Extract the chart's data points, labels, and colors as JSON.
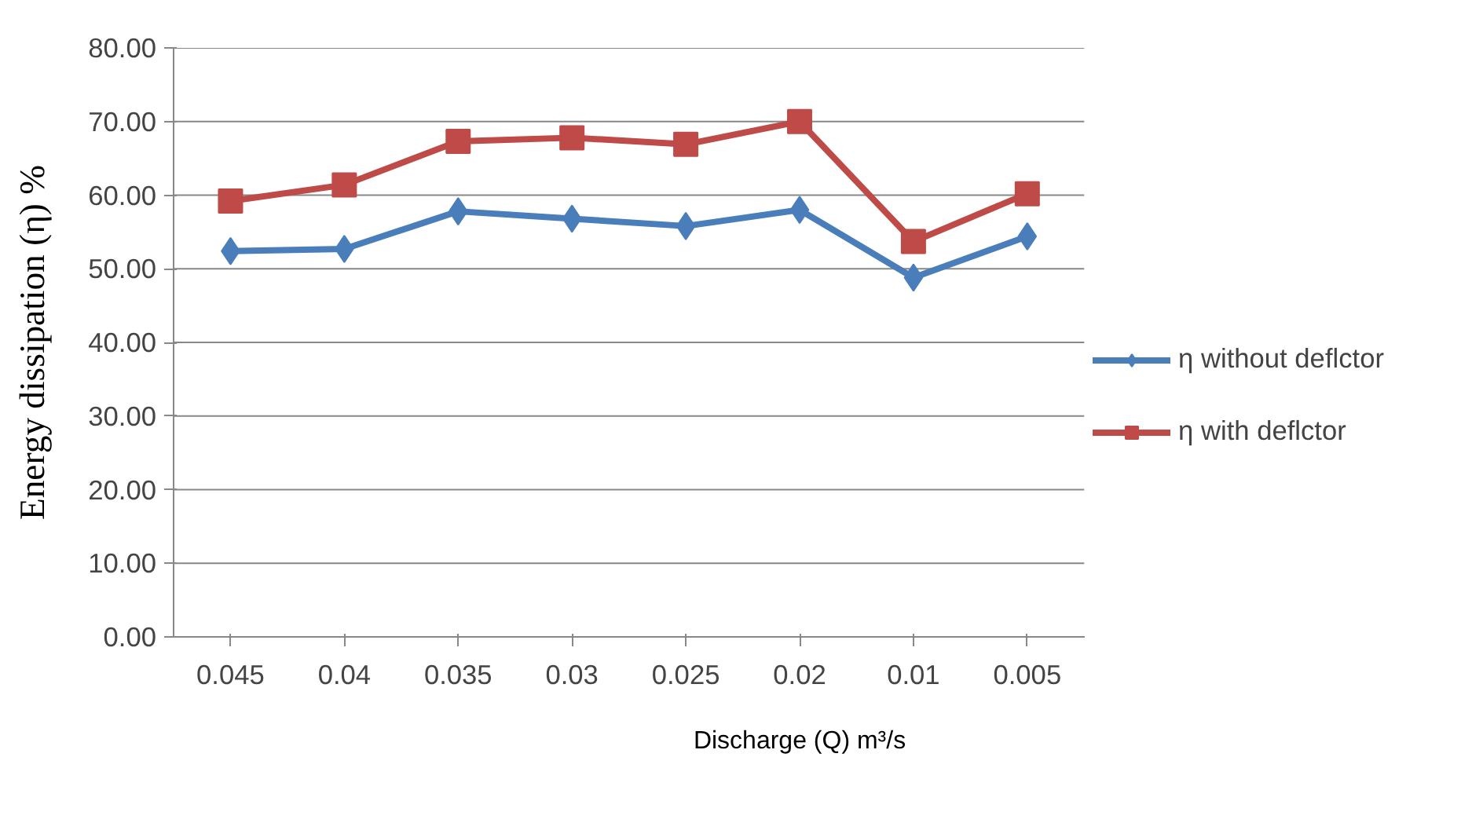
{
  "chart_data": {
    "type": "line",
    "xlabel": "Discharge (Q) m³/s",
    "ylabel": "Energy dissipation (η) %",
    "categories": [
      "0.045",
      "0.04",
      "0.035",
      "0.03",
      "0.025",
      "0.02",
      "0.01",
      "0.005"
    ],
    "series": [
      {
        "name": "η without deflctor",
        "color": "#4a7ebb",
        "marker": "diamond",
        "values": [
          52.4,
          52.7,
          57.8,
          56.8,
          55.8,
          58.0,
          48.8,
          54.4
        ]
      },
      {
        "name": "η with deflctor",
        "color": "#be4b48",
        "marker": "square",
        "values": [
          59.2,
          61.4,
          67.3,
          67.8,
          66.9,
          70.0,
          53.7,
          60.2
        ]
      }
    ],
    "ylim": [
      0,
      80
    ],
    "yticks": [
      {
        "value": 0,
        "label": "0.00"
      },
      {
        "value": 10,
        "label": "10.00"
      },
      {
        "value": 20,
        "label": "20.00"
      },
      {
        "value": 30,
        "label": "30.00"
      },
      {
        "value": 40,
        "label": "40.00"
      },
      {
        "value": 50,
        "label": "50.00"
      },
      {
        "value": 60,
        "label": "60.00"
      },
      {
        "value": 70,
        "label": "70.00"
      },
      {
        "value": 80,
        "label": "80.00"
      }
    ],
    "grid": "y",
    "legend": "right",
    "line_style": "solid"
  }
}
